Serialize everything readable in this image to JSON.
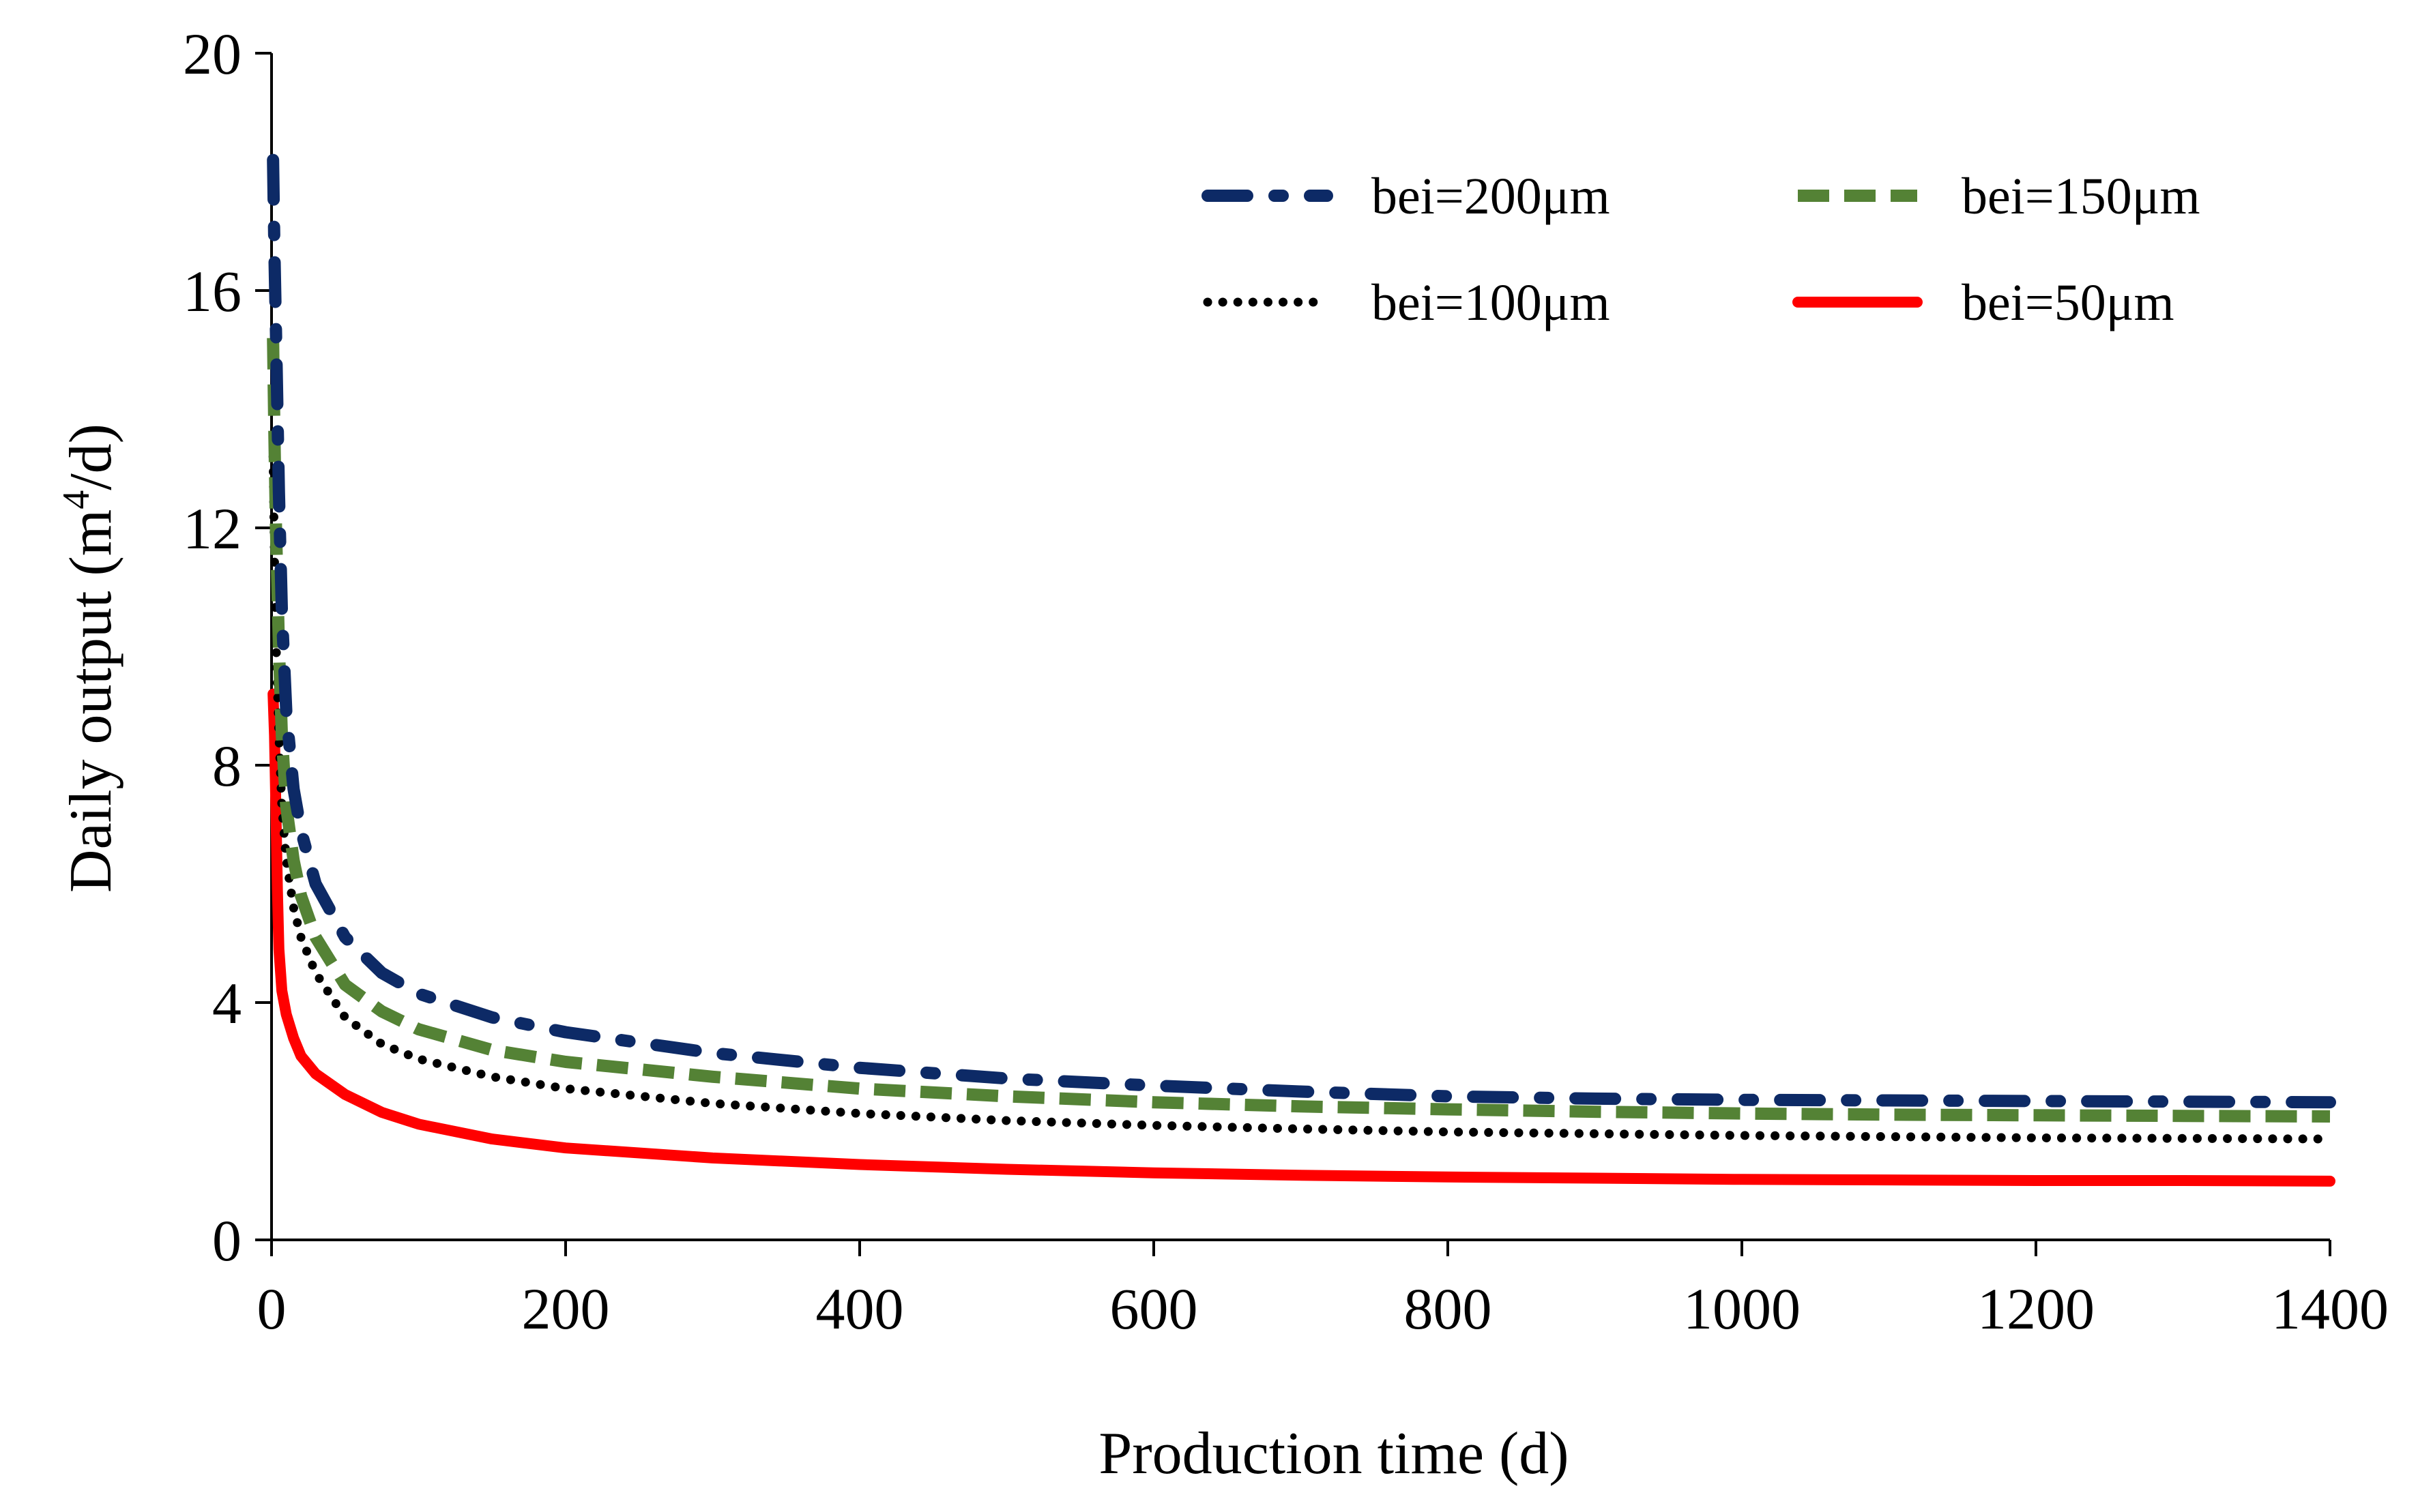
{
  "chart_data": {
    "type": "line",
    "title": "",
    "xlabel": "Production time (d)",
    "ylabel": "Daily output (m",
    "ylabel_sup": "4",
    "ylabel_tail": "/d)",
    "xlim": [
      0,
      1400
    ],
    "ylim": [
      0,
      20
    ],
    "xticks": [
      0,
      200,
      400,
      600,
      800,
      1000,
      1200,
      1400
    ],
    "xtick_labels": [
      "0",
      "200",
      "400",
      "600",
      "800",
      "1000",
      "1200",
      "1400"
    ],
    "yticks": [
      0,
      4,
      8,
      12,
      16,
      20
    ],
    "ytick_labels": [
      "0",
      "4",
      "8",
      "12",
      "16",
      "20"
    ],
    "grid": false,
    "legend_position": "top-right",
    "series": [
      {
        "name": "bei=200μm",
        "color": "#0d2a66",
        "style": "dash-dot",
        "x": [
          1,
          2,
          3,
          5,
          7,
          10,
          15,
          20,
          30,
          50,
          75,
          100,
          150,
          200,
          300,
          400,
          500,
          600,
          700,
          800,
          900,
          1000,
          1100,
          1200,
          1300,
          1400
        ],
        "y": [
          18.2,
          16.6,
          15.3,
          12.6,
          10.6,
          8.9,
          7.6,
          6.9,
          6.0,
          5.1,
          4.5,
          4.15,
          3.75,
          3.5,
          3.15,
          2.9,
          2.72,
          2.6,
          2.5,
          2.42,
          2.38,
          2.36,
          2.35,
          2.34,
          2.33,
          2.32
        ]
      },
      {
        "name": "bei=150μm",
        "color": "#548235",
        "style": "dash",
        "x": [
          1,
          2,
          3,
          5,
          7,
          10,
          15,
          20,
          30,
          50,
          75,
          100,
          150,
          200,
          300,
          400,
          500,
          600,
          700,
          800,
          900,
          1000,
          1100,
          1200,
          1300,
          1400
        ],
        "y": [
          15.2,
          13.5,
          12.0,
          10.0,
          8.5,
          7.3,
          6.4,
          5.8,
          5.1,
          4.3,
          3.85,
          3.55,
          3.2,
          3.0,
          2.75,
          2.55,
          2.42,
          2.32,
          2.25,
          2.2,
          2.16,
          2.13,
          2.11,
          2.1,
          2.09,
          2.08
        ]
      },
      {
        "name": "bei=100μm",
        "color": "#000000",
        "style": "dot",
        "x": [
          1,
          2,
          3,
          5,
          7,
          10,
          15,
          20,
          30,
          50,
          75,
          100,
          150,
          200,
          300,
          400,
          500,
          600,
          700,
          800,
          900,
          1000,
          1100,
          1200,
          1300,
          1400
        ],
        "y": [
          13.2,
          11.5,
          10.1,
          8.5,
          7.3,
          6.4,
          5.6,
          5.1,
          4.5,
          3.75,
          3.3,
          3.05,
          2.75,
          2.55,
          2.3,
          2.13,
          2.01,
          1.93,
          1.87,
          1.82,
          1.79,
          1.76,
          1.74,
          1.72,
          1.71,
          1.7
        ]
      },
      {
        "name": "bei=50μm",
        "color": "#ff0000",
        "style": "solid",
        "x": [
          1,
          2,
          3,
          4,
          5,
          7,
          10,
          15,
          20,
          30,
          50,
          75,
          100,
          150,
          200,
          300,
          400,
          500,
          600,
          700,
          800,
          900,
          1000,
          1100,
          1200,
          1300,
          1400
        ],
        "y": [
          9.2,
          8.5,
          7.2,
          5.9,
          4.9,
          4.2,
          3.8,
          3.4,
          3.1,
          2.8,
          2.45,
          2.15,
          1.95,
          1.7,
          1.55,
          1.38,
          1.27,
          1.19,
          1.13,
          1.09,
          1.06,
          1.04,
          1.02,
          1.01,
          1.0,
          1.0,
          0.99
        ]
      }
    ]
  }
}
